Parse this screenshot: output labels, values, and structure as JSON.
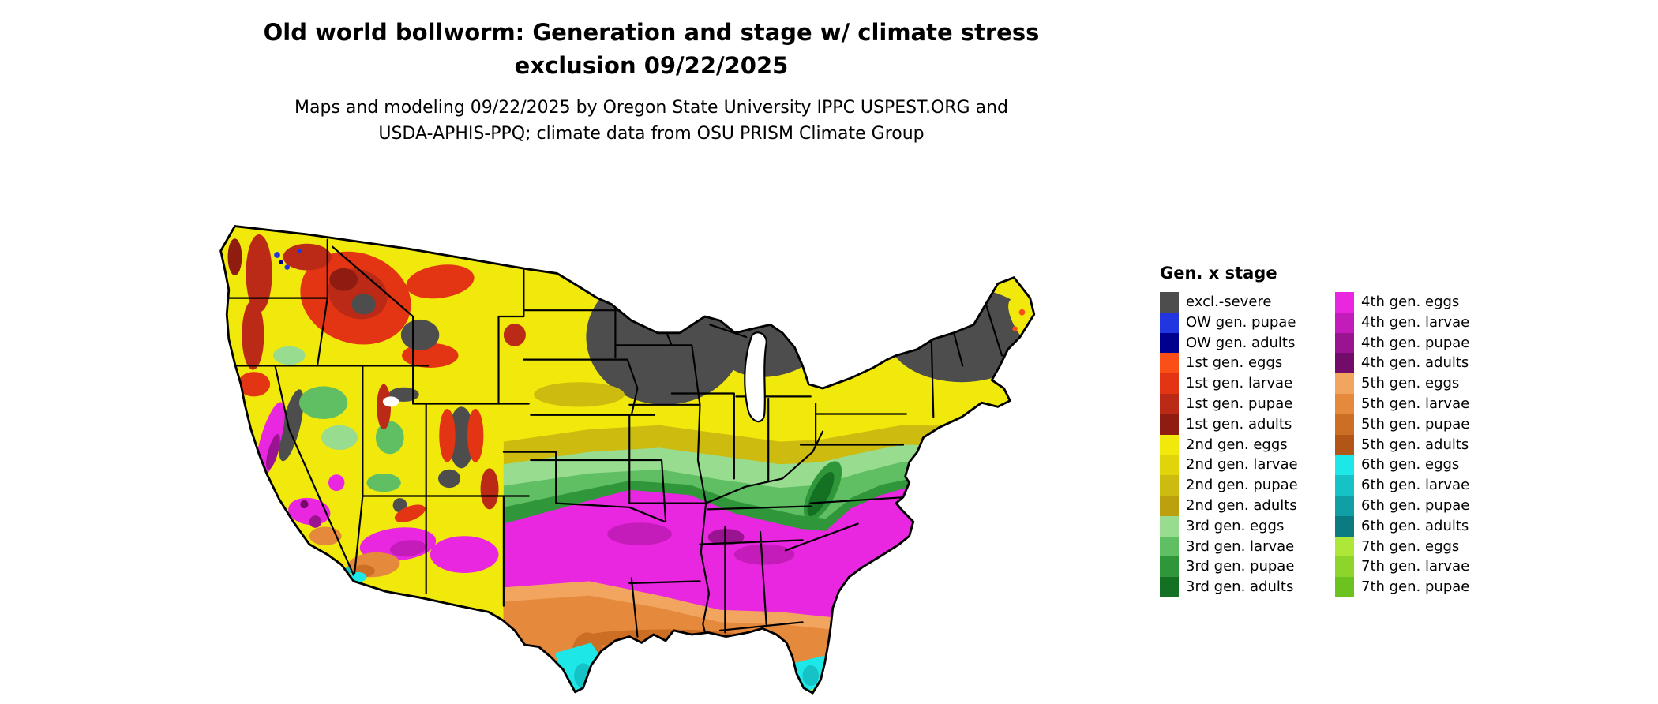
{
  "header": {
    "title": "Old world bollworm: Generation and stage w/ climate stress\nexclusion 09/22/2025",
    "subtitle": "Maps and modeling 09/22/2025 by Oregon State University IPPC USPEST.ORG and\nUSDA-APHIS-PPQ; climate data from OSU PRISM Climate Group"
  },
  "palette": {
    "excl": "#4d4d4d",
    "ow_pupae": "#2135e0",
    "ow_adults": "#00008f",
    "g1_eggs": "#fa4f16",
    "g1_larvae": "#e33413",
    "g1_pupae": "#bb2a16",
    "g1_adults": "#8e1c11",
    "g2_eggs": "#f1e90c",
    "g2_larvae": "#e2d40b",
    "g2_pupae": "#cdbb0f",
    "g2_adults": "#bda00d",
    "g3_eggs": "#98dc90",
    "g3_larvae": "#60bf63",
    "g3_pupae": "#2f9739",
    "g3_adults": "#147022",
    "g4_eggs": "#e926e0",
    "g4_larvae": "#c41cbb",
    "g4_pupae": "#9a1390",
    "g4_adults": "#720b6a",
    "g5_eggs": "#f2a55f",
    "g5_larvae": "#e5893d",
    "g5_pupae": "#cd6e25",
    "g5_adults": "#b15617",
    "g6_eggs": "#1de7e7",
    "g6_larvae": "#15c3c7",
    "g6_pupae": "#109fa4",
    "g6_adults": "#0b7b81",
    "g7_eggs": "#afe738",
    "g7_larvae": "#8dd52b",
    "g7_pupae": "#6cc31f"
  },
  "legend": {
    "title": "Gen. x stage",
    "columns": [
      {
        "items": [
          {
            "label": "excl.-severe",
            "color_key": "excl"
          },
          {
            "label": "OW gen. pupae",
            "color_key": "ow_pupae"
          },
          {
            "label": "OW gen. adults",
            "color_key": "ow_adults"
          },
          {
            "label": "1st gen. eggs",
            "color_key": "g1_eggs"
          },
          {
            "label": "1st gen. larvae",
            "color_key": "g1_larvae"
          },
          {
            "label": "1st gen. pupae",
            "color_key": "g1_pupae"
          },
          {
            "label": "1st gen. adults",
            "color_key": "g1_adults"
          },
          {
            "label": "2nd gen. eggs",
            "color_key": "g2_eggs"
          },
          {
            "label": "2nd gen. larvae",
            "color_key": "g2_larvae"
          },
          {
            "label": "2nd gen. pupae",
            "color_key": "g2_pupae"
          },
          {
            "label": "2nd gen. adults",
            "color_key": "g2_adults"
          },
          {
            "label": "3rd gen. eggs",
            "color_key": "g3_eggs"
          },
          {
            "label": "3rd gen. larvae",
            "color_key": "g3_larvae"
          },
          {
            "label": "3rd gen. pupae",
            "color_key": "g3_pupae"
          },
          {
            "label": "3rd gen. adults",
            "color_key": "g3_adults"
          }
        ]
      },
      {
        "items": [
          {
            "label": "4th gen. eggs",
            "color_key": "g4_eggs"
          },
          {
            "label": "4th gen. larvae",
            "color_key": "g4_larvae"
          },
          {
            "label": "4th gen. pupae",
            "color_key": "g4_pupae"
          },
          {
            "label": "4th gen. adults",
            "color_key": "g4_adults"
          },
          {
            "label": "5th gen. eggs",
            "color_key": "g5_eggs"
          },
          {
            "label": "5th gen. larvae",
            "color_key": "g5_larvae"
          },
          {
            "label": "5th gen. pupae",
            "color_key": "g5_pupae"
          },
          {
            "label": "5th gen. adults",
            "color_key": "g5_adults"
          },
          {
            "label": "6th gen. eggs",
            "color_key": "g6_eggs"
          },
          {
            "label": "6th gen. larvae",
            "color_key": "g6_larvae"
          },
          {
            "label": "6th gen. pupae",
            "color_key": "g6_pupae"
          },
          {
            "label": "6th gen. adults",
            "color_key": "g6_adults"
          },
          {
            "label": "7th gen. eggs",
            "color_key": "g7_eggs"
          },
          {
            "label": "7th gen. larvae",
            "color_key": "g7_larvae"
          },
          {
            "label": "7th gen. pupae",
            "color_key": "g7_pupae"
          }
        ]
      }
    ]
  }
}
